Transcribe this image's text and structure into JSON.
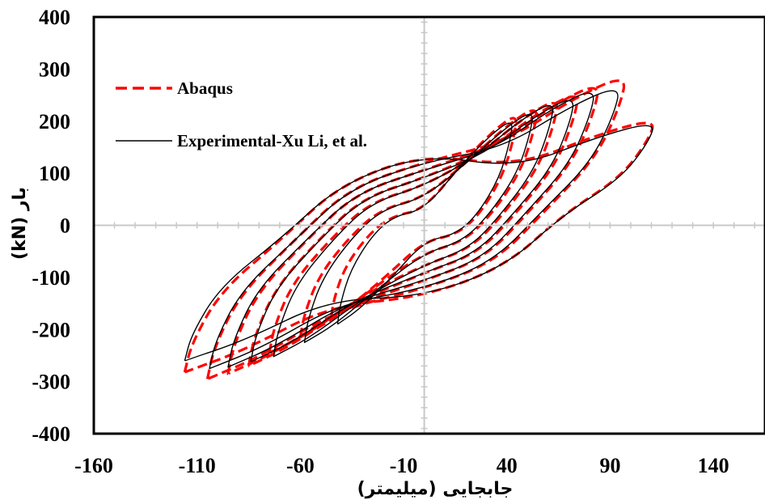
{
  "chart_data": {
    "type": "line",
    "title": "",
    "xlabel": "جابجایی (میلیمتر)",
    "ylabel": "بار (kN)",
    "xlim": [
      -160,
      165
    ],
    "ylim": [
      -400,
      400
    ],
    "x_ticks": [
      "-160",
      "-110",
      "-60",
      "-10",
      "40",
      "90",
      "140"
    ],
    "y_ticks": [
      "400",
      "300",
      "200",
      "100",
      "0",
      "-100",
      "-200",
      "-300",
      "-400"
    ],
    "grid": false,
    "legend_position": "top-left",
    "colors": {
      "abaqus": "#ff0000",
      "experimental": "#000000"
    },
    "series": [
      {
        "name": "Abaqus",
        "style": "dashed",
        "loops": [
          {
            "min": [
              -45,
              -175
            ],
            "max": [
              45,
              215
            ],
            "res": [
              -8,
              8
            ]
          },
          {
            "min": [
              -60,
              -215
            ],
            "max": [
              55,
              230
            ],
            "res": [
              -14,
              14
            ]
          },
          {
            "min": [
              -75,
              -245
            ],
            "max": [
              65,
              245
            ],
            "res": [
              -20,
              20
            ]
          },
          {
            "min": [
              -85,
              -270
            ],
            "max": [
              75,
              258
            ],
            "res": [
              -24,
              24
            ]
          },
          {
            "min": [
              -95,
              -285
            ],
            "max": [
              85,
              275
            ],
            "res": [
              -28,
              28
            ]
          },
          {
            "min": [
              -105,
              -295
            ],
            "max": [
              98,
              290
            ],
            "res": [
              -32,
              32
            ]
          },
          {
            "min": [
              -116,
              -282
            ],
            "max": [
              112,
              205
            ],
            "res": [
              -36,
              36
            ]
          }
        ]
      },
      {
        "name": "Experimental-Xu Li, et al.",
        "style": "solid",
        "loops": [
          {
            "min": [
              -42,
              -190
            ],
            "max": [
              43,
              205
            ],
            "res": [
              -8,
              8
            ]
          },
          {
            "min": [
              -58,
              -225
            ],
            "max": [
              53,
              222
            ],
            "res": [
              -14,
              14
            ]
          },
          {
            "min": [
              -73,
              -252
            ],
            "max": [
              63,
              240
            ],
            "res": [
              -20,
              20
            ]
          },
          {
            "min": [
              -84,
              -262
            ],
            "max": [
              73,
              250
            ],
            "res": [
              -24,
              24
            ]
          },
          {
            "min": [
              -95,
              -272
            ],
            "max": [
              83,
              265
            ],
            "res": [
              -28,
              28
            ]
          },
          {
            "min": [
              -104,
              -275
            ],
            "max": [
              95,
              270
            ],
            "res": [
              -32,
              32
            ]
          },
          {
            "min": [
              -116,
              -260
            ],
            "max": [
              112,
              200
            ],
            "res": [
              -36,
              36
            ]
          }
        ]
      }
    ]
  }
}
